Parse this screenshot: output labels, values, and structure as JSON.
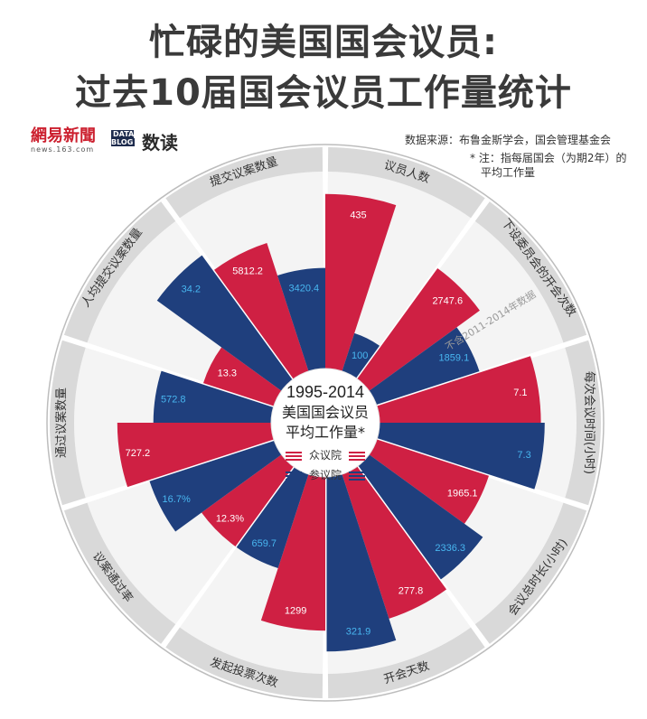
{
  "header": {
    "title_line1": "忙碌的美国国会议员:",
    "title_line2": "过去10届国会议员工作量统计",
    "netease_logo": "網易新聞",
    "netease_url": "news.163.com",
    "datablog_mark": "DATA BLOG",
    "datablog_label": "数读",
    "source": "数据来源：布鲁金斯学会，国会管理基金会",
    "note_line1": "* 注：指每届国会（为期2年）的",
    "note_line2": "平均工作量"
  },
  "center": {
    "line1": "1995-2014",
    "line2": "美国国会议员",
    "line3": "平均工作量*",
    "legend": [
      {
        "name": "众议院",
        "color": "#cf2043"
      },
      {
        "name": "参议院",
        "color": "#1f3f7d"
      }
    ]
  },
  "colors": {
    "house": "#cf2043",
    "senate": "#1f3f7d",
    "ring": "#d9d9d9",
    "sector_bg": "#f4f4f4"
  },
  "chart_data": {
    "type": "polar-bar",
    "annotation": "不含2011-2014年数据",
    "categories": [
      {
        "label": "议员人数",
        "house": 435,
        "senate": 100,
        "house_label": "435",
        "senate_label": "100",
        "house_level": 0.93,
        "senate_level": 0.22
      },
      {
        "label": "下设委员会的开会次数",
        "house": 2747.6,
        "senate": 1859.1,
        "house_label": "2747.6",
        "senate_label": "1859.1",
        "house_level": 0.73,
        "senate_level": 0.58
      },
      {
        "label": "每次会议时间(小时)",
        "house": 7.1,
        "senate": 7.3,
        "house_label": "7.1",
        "senate_label": "7.3",
        "house_level": 0.86,
        "senate_level": 0.88
      },
      {
        "label": "会议总时长(小时)",
        "house": 1965.1,
        "senate": 2336.3,
        "house_label": "1965.1",
        "senate_label": "2336.3",
        "house_level": 0.63,
        "senate_level": 0.75
      },
      {
        "label": "开会天数",
        "house": 277.8,
        "senate": 321.9,
        "house_label": "277.8",
        "senate_label": "321.9",
        "house_level": 0.81,
        "senate_level": 0.93
      },
      {
        "label": "发起投票次数",
        "house": 1299,
        "senate": 659.7,
        "house_label": "1299",
        "senate_label": "659.7",
        "house_level": 0.82,
        "senate_level": 0.53
      },
      {
        "label": "议案通过率",
        "house": 12.3,
        "senate": 16.7,
        "house_label": "12.3%",
        "senate_label": "16.7%",
        "house_level": 0.53,
        "senate_level": 0.7
      },
      {
        "label": "通过议案数量",
        "house": 727.2,
        "senate": 572.8,
        "house_label": "727.2",
        "senate_label": "572.8",
        "house_level": 0.82,
        "senate_level": 0.63
      },
      {
        "label": "人均提交议案数量",
        "house": 13.3,
        "senate": 34.2,
        "house_label": "13.3",
        "senate_label": "34.2",
        "house_level": 0.4,
        "senate_level": 0.82
      },
      {
        "label": "提交议案数量",
        "house": 5812.2,
        "senate": 3420.4,
        "house_label": "5812.2",
        "senate_label": "3420.4",
        "house_level": 0.72,
        "senate_level": 0.54
      }
    ]
  }
}
